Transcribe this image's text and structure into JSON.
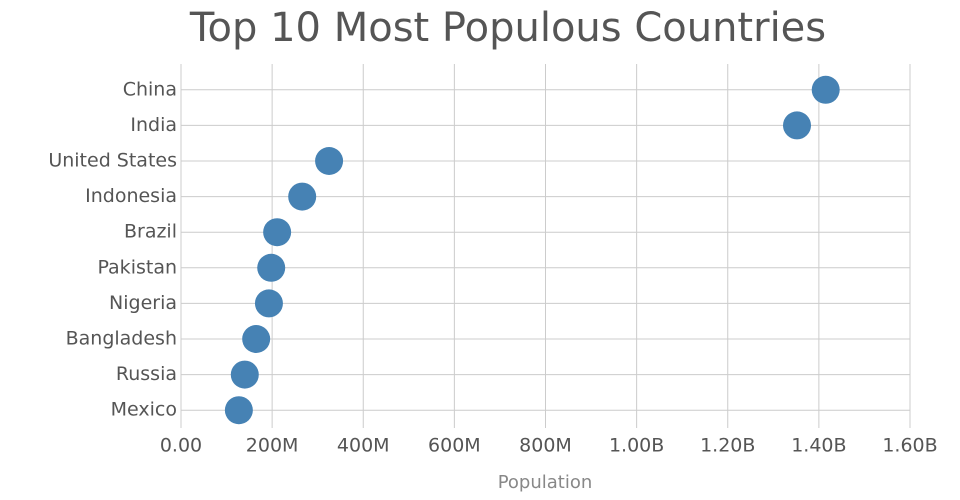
{
  "chart_data": {
    "type": "dot",
    "title": "Top 10 Most Populous Countries",
    "x_label": "Population",
    "categories": [
      "China",
      "India",
      "United States",
      "Indonesia",
      "Brazil",
      "Pakistan",
      "Nigeria",
      "Bangladesh",
      "Russia",
      "Mexico"
    ],
    "values": [
      1415000000,
      1352000000,
      325000000,
      266000000,
      211000000,
      198000000,
      193000000,
      165000000,
      140000000,
      127000000
    ],
    "color": "#4682b4",
    "xlim": [
      0,
      1600000000
    ],
    "xticks": [
      {
        "value": 0,
        "label": "0.00"
      },
      {
        "value": 200000000,
        "label": "200M"
      },
      {
        "value": 400000000,
        "label": "400M"
      },
      {
        "value": 600000000,
        "label": "600M"
      },
      {
        "value": 800000000,
        "label": "800M"
      },
      {
        "value": 1000000000,
        "label": "1.00B"
      },
      {
        "value": 1200000000,
        "label": "1.20B"
      },
      {
        "value": 1400000000,
        "label": "1.40B"
      },
      {
        "value": 1600000000,
        "label": "1.60B"
      }
    ],
    "grid": true
  }
}
